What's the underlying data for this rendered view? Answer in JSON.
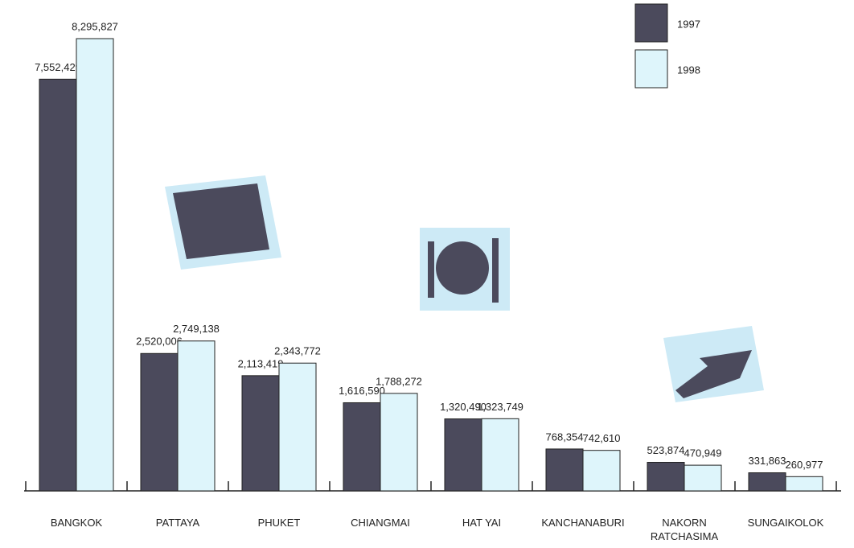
{
  "chart_data": {
    "type": "bar",
    "categories": [
      "BANGKOK",
      "PATTAYA",
      "PHUKET",
      "CHIANGMAI",
      "HAT YAI",
      "KANCHANABURI",
      "NAKORN RATCHASIMA",
      "SUNGAIKOLOK"
    ],
    "series": [
      {
        "name": "1997",
        "color": "#4b4a5c",
        "values": [
          7552429,
          2520006,
          2113419,
          1616590,
          1320490,
          768354,
          523874,
          331863
        ],
        "value_labels": [
          "7,552,429",
          "2,520,006",
          "2,113,419",
          "1,616,590",
          "1,320,490",
          "768,354",
          "523,874",
          "331,863"
        ]
      },
      {
        "name": "1998",
        "color": "#def5fb",
        "values": [
          8295827,
          2749138,
          2343772,
          1788272,
          1323749,
          742610,
          470949,
          260977
        ],
        "value_labels": [
          "8,295,827",
          "2,749,138",
          "2,343,772",
          "1,788,272",
          "1,323,749",
          "742,610",
          "470,949",
          "260,977"
        ]
      }
    ],
    "legend": "top-right"
  }
}
